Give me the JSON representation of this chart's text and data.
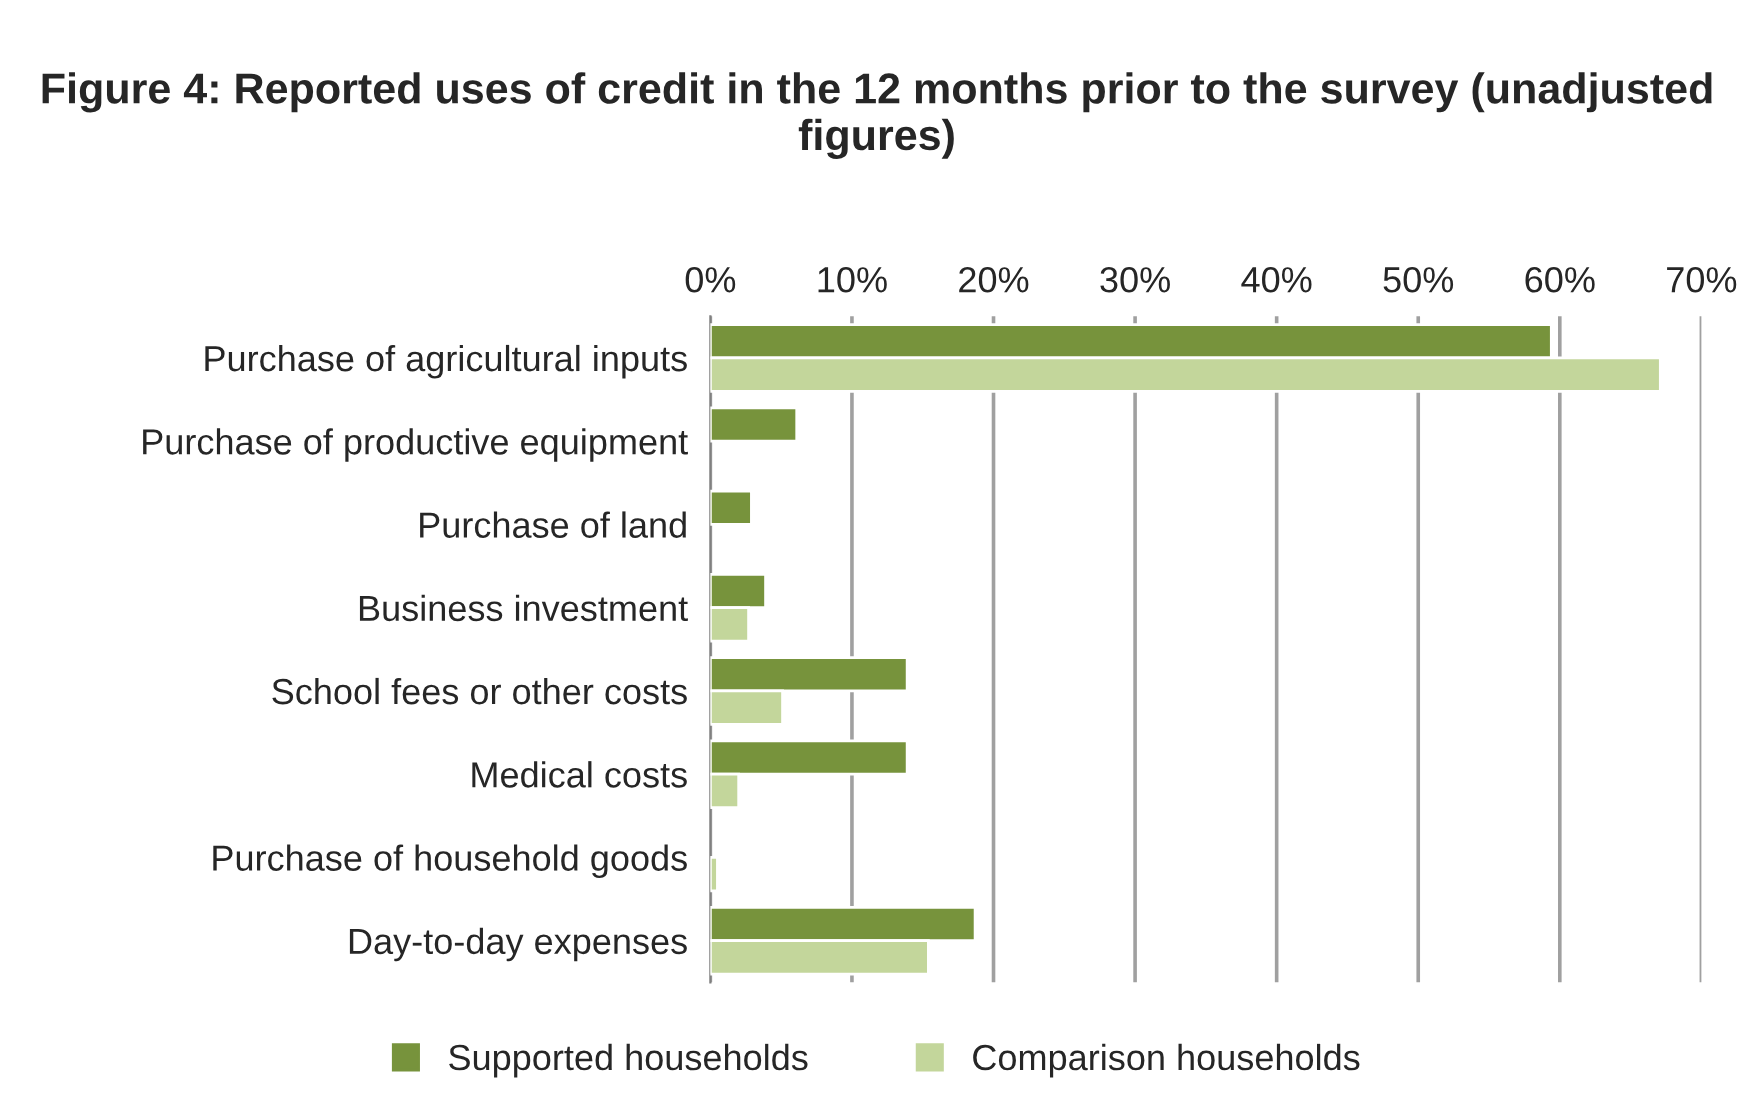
{
  "chart_data": {
    "type": "bar",
    "orientation": "horizontal",
    "title": "Figure 4: Reported uses of credit in the 12 months prior to the survey (unadjusted figures)",
    "categories": [
      "Purchase of agricultural inputs",
      "Purchase of productive equipment",
      "Purchase of land",
      "Business investment",
      "School fees or other costs",
      "Medical costs",
      "Purchase of household goods",
      "Day-to-day expenses"
    ],
    "series": [
      {
        "name": "Supported households",
        "color": "#77933c",
        "values": [
          59.4,
          6.1,
          2.9,
          3.9,
          13.9,
          13.9,
          null,
          18.7
        ]
      },
      {
        "name": "Comparison households",
        "color": "#c3d69b",
        "values": [
          67.1,
          null,
          null,
          2.7,
          5.1,
          2.0,
          0.5,
          15.4
        ]
      }
    ],
    "xlim": [
      0,
      70
    ],
    "xticks": [
      {
        "value": 0,
        "label": "0%"
      },
      {
        "value": 10,
        "label": "10%"
      },
      {
        "value": 20,
        "label": "20%"
      },
      {
        "value": 30,
        "label": "30%"
      },
      {
        "value": 40,
        "label": "40%"
      },
      {
        "value": 50,
        "label": "50%"
      },
      {
        "value": 60,
        "label": "60%"
      },
      {
        "value": 70,
        "label": "70%"
      }
    ],
    "grid": "x",
    "legend": "bottom"
  }
}
